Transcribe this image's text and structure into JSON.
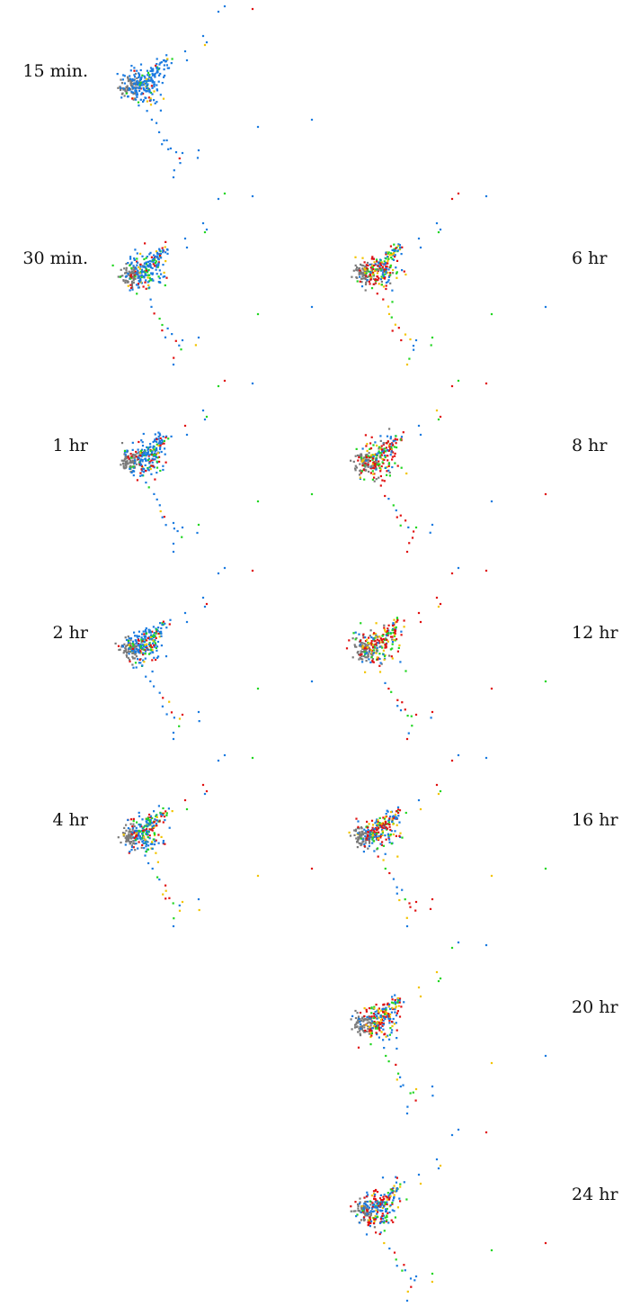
{
  "chart_data": {
    "type": "scatter",
    "title": "",
    "xlabel": "",
    "ylabel": "",
    "grid": false,
    "axes_visible": false,
    "legend": false,
    "colors": {
      "gray": "#7a7a7a",
      "blue": "#1a7be0",
      "green": "#22d622",
      "yellow": "#f2c400",
      "red": "#e01010"
    },
    "point_shape": "square-dot",
    "panels": [
      {
        "label": "15 min.",
        "column": "left",
        "red": 0.04,
        "yellow": 0.05,
        "green": 0.07,
        "cluster_mix": "blue"
      },
      {
        "label": "30 min.",
        "column": "left",
        "red": 0.12,
        "yellow": 0.08,
        "green": 0.14,
        "cluster_mix": "blue"
      },
      {
        "label": "1 hr",
        "column": "left",
        "red": 0.18,
        "yellow": 0.05,
        "green": 0.12,
        "cluster_mix": "blue"
      },
      {
        "label": "2 hr",
        "column": "left",
        "red": 0.17,
        "yellow": 0.08,
        "green": 0.15,
        "cluster_mix": "blue"
      },
      {
        "label": "4 hr",
        "column": "left",
        "red": 0.24,
        "yellow": 0.1,
        "green": 0.18,
        "cluster_mix": "blue"
      },
      {
        "label": "6 hr",
        "column": "right",
        "red": 0.34,
        "yellow": 0.14,
        "green": 0.22,
        "cluster_mix": "gray"
      },
      {
        "label": "8 hr",
        "column": "right",
        "red": 0.38,
        "yellow": 0.12,
        "green": 0.18,
        "cluster_mix": "gray"
      },
      {
        "label": "12 hr",
        "column": "right",
        "red": 0.36,
        "yellow": 0.14,
        "green": 0.22,
        "cluster_mix": "gray"
      },
      {
        "label": "16 hr",
        "column": "right",
        "red": 0.3,
        "yellow": 0.14,
        "green": 0.18,
        "cluster_mix": "blue"
      },
      {
        "label": "20 hr",
        "column": "right",
        "red": 0.32,
        "yellow": 0.14,
        "green": 0.14,
        "cluster_mix": "blue"
      },
      {
        "label": "24 hr",
        "column": "right",
        "red": 0.32,
        "yellow": 0.12,
        "green": 0.14,
        "cluster_mix": "blue"
      }
    ]
  }
}
